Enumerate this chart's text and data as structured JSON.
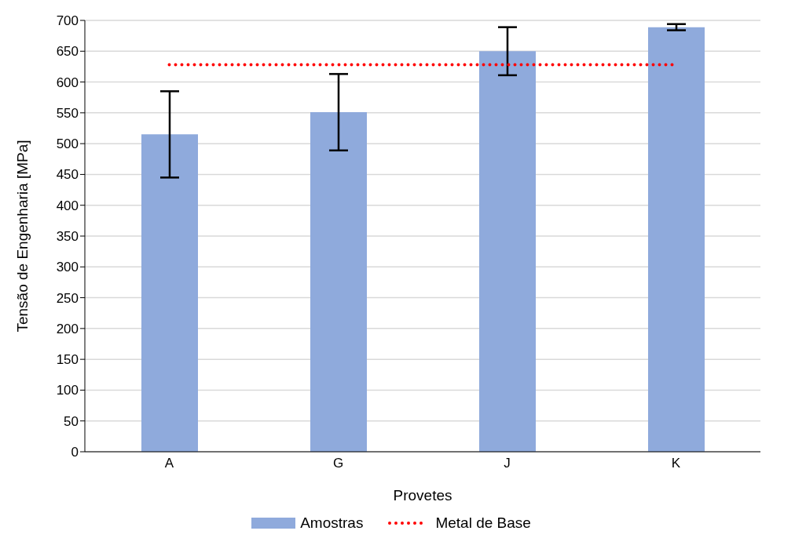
{
  "chart_data": {
    "type": "bar",
    "xlabel": "Provetes",
    "ylabel": "Tensão de Engenharia [MPa]",
    "categories": [
      "A",
      "G",
      "J",
      "K"
    ],
    "series": [
      {
        "name": "Amostras",
        "color": "#8faadc",
        "values": [
          515,
          551,
          650,
          689
        ],
        "errors": [
          70,
          62,
          39,
          5
        ]
      },
      {
        "name": "Metal de Base",
        "type": "line",
        "color": "#ff0000",
        "values": [
          628,
          628,
          628,
          628
        ],
        "line_style": "dotted",
        "marker": "none"
      }
    ],
    "ylim": [
      0,
      700
    ],
    "yticks": [
      0,
      50,
      100,
      150,
      200,
      250,
      300,
      350,
      400,
      450,
      500,
      550,
      600,
      650,
      700
    ],
    "grid": "y",
    "legend": "bottom"
  }
}
